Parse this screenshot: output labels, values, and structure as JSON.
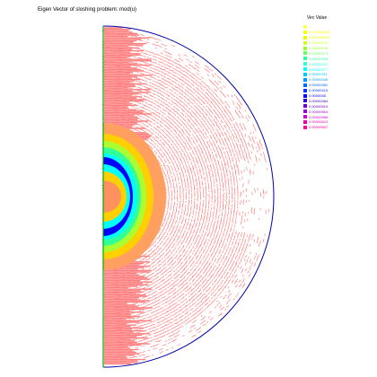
{
  "title": "Eigen Vector of sloshing problem: mod(u)",
  "chart_data": {
    "type": "heatmap",
    "title": "Eigen Vector of sloshing problem: mod(u)",
    "legend": {
      "title": "Vec Value",
      "placement": "top-right",
      "entries": [
        {
          "label": "0",
          "color": "#ffff66"
        },
        {
          "label": "0.000000346",
          "color": "#ffff00"
        },
        {
          "label": "0.000000692",
          "color": "#e6ff00"
        },
        {
          "label": "0.00000104",
          "color": "#ccff33"
        },
        {
          "label": "0.00000138",
          "color": "#99ff33"
        },
        {
          "label": "0.00000173",
          "color": "#66ff66"
        },
        {
          "label": "0.00000208",
          "color": "#33ff99"
        },
        {
          "label": "0.00000242",
          "color": "#33ffcc"
        },
        {
          "label": "0.00000277",
          "color": "#00ffff"
        },
        {
          "label": "0.00000311",
          "color": "#00ccff"
        },
        {
          "label": "0.00000346",
          "color": "#0099ff"
        },
        {
          "label": "0.00000381",
          "color": "#0066ff"
        },
        {
          "label": "0.00000415",
          "color": "#0033ff"
        },
        {
          "label": "0.0000045",
          "color": "#0000ff"
        },
        {
          "label": "0.00000484",
          "color": "#3300cc"
        },
        {
          "label": "0.00000519",
          "color": "#6600cc"
        },
        {
          "label": "0.00000554",
          "color": "#9900cc"
        },
        {
          "label": "0.00000588",
          "color": "#cc00cc"
        },
        {
          "label": "0.00000623",
          "color": "#e600b3"
        },
        {
          "label": "0.00000657",
          "color": "#ff0099"
        }
      ]
    },
    "field": {
      "domain": "half-disk",
      "max_near": "left edge, upper and lower lobes",
      "colors": {
        "mesh": "#ff8080",
        "boundary": "#0000aa",
        "axis": "#00aa00",
        "outer_ring": "#ffd000",
        "mid_ring": "#00ffff",
        "inner_ring": "#0000ff",
        "core": "#8000ff"
      }
    }
  }
}
